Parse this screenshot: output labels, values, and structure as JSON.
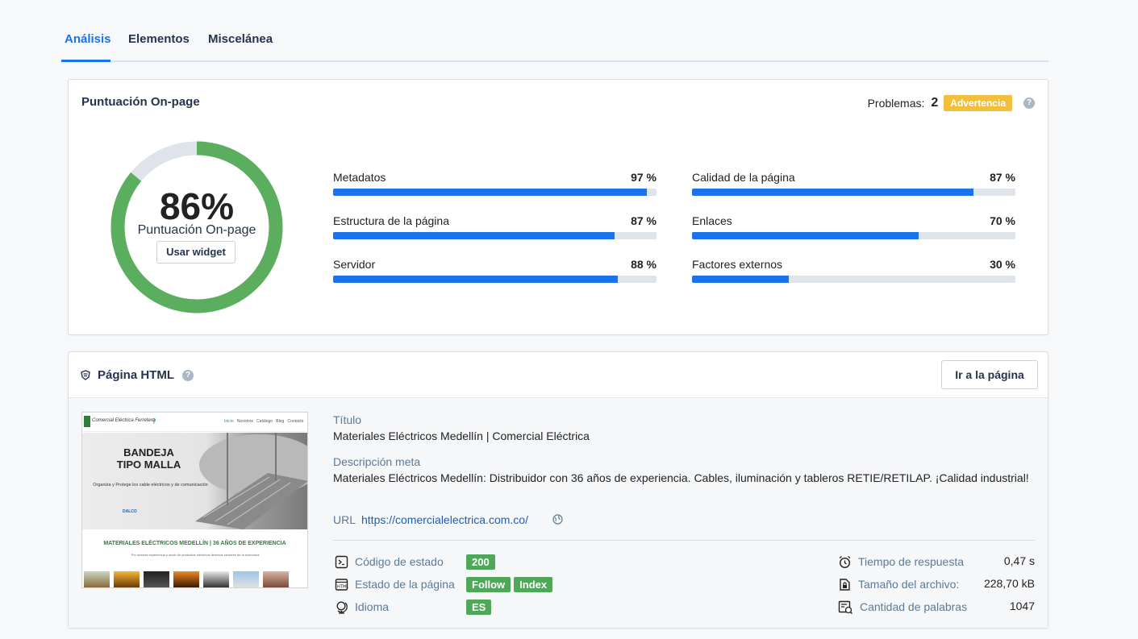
{
  "tabs": [
    {
      "label": "Análisis"
    },
    {
      "label": "Elementos"
    },
    {
      "label": "Miscelánea"
    }
  ],
  "score_card": {
    "title": "Puntuación On-page",
    "problems_label": "Problemas:",
    "problems_count": "2",
    "warning_badge": "Advertencia",
    "help_icon": "?",
    "score_percent": 86,
    "score_text": "86%",
    "score_label": "Puntuación On-page",
    "widget_button": "Usar widget",
    "colors": {
      "score_fill": "#5bae5e",
      "score_track": "#dfe4ea",
      "bar_fill": "#1a73e8"
    },
    "metrics": [
      {
        "label": "Metadatos",
        "value_text": "97 %",
        "value": 97
      },
      {
        "label": "Calidad de la página",
        "value_text": "87 %",
        "value": 87
      },
      {
        "label": "Estructura de la página",
        "value_text": "87 %",
        "value": 87
      },
      {
        "label": "Enlaces",
        "value_text": "70 %",
        "value": 70
      },
      {
        "label": "Servidor",
        "value_text": "88 %",
        "value": 88
      },
      {
        "label": "Factores externos",
        "value_text": "30 %",
        "value": 30
      }
    ]
  },
  "html_card": {
    "title": "Página HTML",
    "go_button": "Ir a la página",
    "title_label": "Título",
    "title_value": "Materiales Eléctricos Medellín | Comercial Eléctrica",
    "meta_label": "Descripción meta",
    "meta_value": "Materiales Eléctricos Medellín: Distribuidor con 36 años de experiencia. Cables, iluminación y tableros RETIE/RETILAP. ¡Calidad industrial!",
    "url_label": "URL",
    "url_value": "https://comercialelectrica.com.co/",
    "status_code_label": "Código de estado",
    "status_code": "200",
    "page_state_label": "Estado de la página",
    "page_state_tags": [
      "Follow",
      "Index"
    ],
    "language_label": "Idioma",
    "language": "ES",
    "response_time_label": "Tiempo de respuesta",
    "response_time": "0,47 s",
    "file_size_label": "Tamaño del archivo:",
    "file_size": "228,70 kB",
    "word_count_label": "Cantidad de palabras",
    "word_count": "1047",
    "thumbnail": {
      "nav_items": [
        "Inicio",
        "Nosotros",
        "Catálogo",
        "Blog",
        "Contacto"
      ],
      "logo_text": "Comercial Eléctrica Ferretera",
      "hero_title_1": "BANDEJA",
      "hero_title_2": "TIPO MALLA",
      "hero_sub": "Organiza y Protege los cable eléctricos y de comunicación",
      "brand": "DALCO",
      "banner": "MATERIALES ELÉCTRICOS MEDELLÍN | 36 AÑOS DE EXPERIENCIA",
      "banner_sub": "Por nuestra experiencia y stock de productos eléctricos diversos sectores de la economía"
    }
  }
}
